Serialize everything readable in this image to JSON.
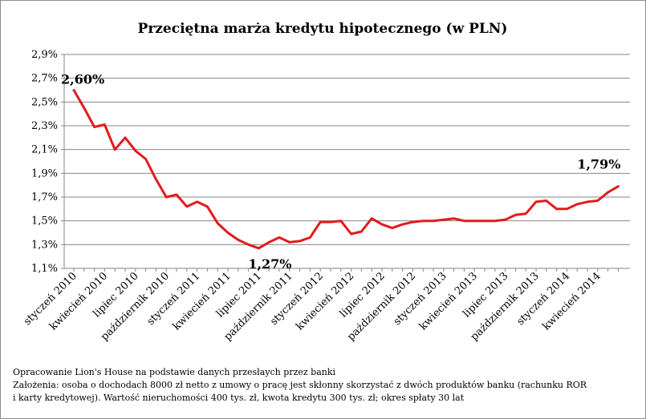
{
  "chart_data": {
    "type": "line",
    "title": "Przeciętna marża kredytu hipotecznego (w PLN)",
    "xlabel": "",
    "ylabel": "",
    "ylim": [
      1.1,
      2.9
    ],
    "yticks": [
      1.1,
      1.3,
      1.5,
      1.7,
      1.9,
      2.1,
      2.3,
      2.5,
      2.7,
      2.9
    ],
    "ytick_labels": [
      "1,1%",
      "1,3%",
      "1,5%",
      "1,7%",
      "1,9%",
      "2,1%",
      "2,3%",
      "2,5%",
      "2,7%",
      "2,9%"
    ],
    "line_color": "#e41a1c",
    "x_labels": [
      {
        "index": 0,
        "label": "styczeń 2010"
      },
      {
        "index": 3,
        "label": "kwiecień 2010"
      },
      {
        "index": 6,
        "label": "lipiec 2010"
      },
      {
        "index": 9,
        "label": "październik 2010"
      },
      {
        "index": 12,
        "label": "styczeń 2011"
      },
      {
        "index": 15,
        "label": "kwiecień 2011"
      },
      {
        "index": 18,
        "label": "lipiec 2011"
      },
      {
        "index": 21,
        "label": "październik 2011"
      },
      {
        "index": 24,
        "label": "styczeń 2012"
      },
      {
        "index": 27,
        "label": "kwiecień 2012"
      },
      {
        "index": 30,
        "label": "lipiec 2012"
      },
      {
        "index": 33,
        "label": "październik 2012"
      },
      {
        "index": 36,
        "label": "styczeń 2013"
      },
      {
        "index": 39,
        "label": "kwiecień 2013"
      },
      {
        "index": 42,
        "label": "lipiec 2013"
      },
      {
        "index": 45,
        "label": "październik 2013"
      },
      {
        "index": 48,
        "label": "styczeń 2014"
      },
      {
        "index": 51,
        "label": "kwiecień 2014"
      }
    ],
    "series": [
      {
        "name": "Przeciętna marża",
        "values": [
          2.6,
          2.45,
          2.29,
          2.31,
          2.1,
          2.2,
          2.09,
          2.02,
          1.85,
          1.7,
          1.72,
          1.62,
          1.66,
          1.62,
          1.48,
          1.4,
          1.34,
          1.3,
          1.27,
          1.32,
          1.36,
          1.32,
          1.33,
          1.36,
          1.49,
          1.49,
          1.5,
          1.39,
          1.41,
          1.52,
          1.47,
          1.44,
          1.47,
          1.49,
          1.5,
          1.5,
          1.51,
          1.52,
          1.5,
          1.5,
          1.5,
          1.5,
          1.51,
          1.55,
          1.56,
          1.66,
          1.67,
          1.6,
          1.6,
          1.64,
          1.66,
          1.67,
          1.74,
          1.79
        ]
      }
    ],
    "annotations": [
      {
        "index": 0,
        "text": "2,60%"
      },
      {
        "index": 18,
        "text": "1,27%"
      },
      {
        "index": 53,
        "text": "1,79%"
      }
    ]
  },
  "footnotes": {
    "source": "Opracowanie Lion's House na podstawie danych przesłaych przez banki",
    "assumptions_line1": "Założenia: osoba o dochodach 8000 zł netto z umowy o pracę jest skłonny skorzystać z dwóch produktów banku (rachunku ROR",
    "assumptions_line2": "i karty kredytowej). Wartość nieruchomości 400 tys. zł, kwota kredytu 300 tys. zł; okres spłaty 30 lat"
  }
}
